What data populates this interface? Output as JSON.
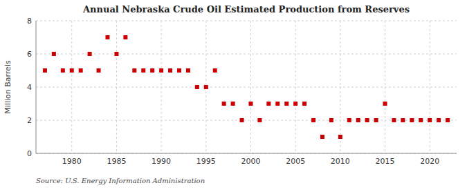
{
  "chart_data": {
    "type": "scatter",
    "title": "Annual Nebraska Crude Oil Estimated Production from Reserves",
    "ylabel": "Million Barrels",
    "source": "Source: U.S. Energy Information Administration",
    "x": [
      1977,
      1978,
      1979,
      1980,
      1981,
      1982,
      1983,
      1984,
      1985,
      1986,
      1987,
      1988,
      1989,
      1990,
      1991,
      1992,
      1993,
      1994,
      1995,
      1996,
      1997,
      1998,
      1999,
      2000,
      2001,
      2002,
      2003,
      2004,
      2005,
      2006,
      2007,
      2008,
      2009,
      2010,
      2011,
      2012,
      2013,
      2014,
      2015,
      2016,
      2017,
      2018,
      2019,
      2020,
      2021,
      2022
    ],
    "values": [
      5,
      6,
      5,
      5,
      5,
      6,
      5,
      7,
      6,
      7,
      5,
      5,
      5,
      5,
      5,
      5,
      5,
      4,
      4,
      5,
      3,
      3,
      2,
      3,
      2,
      3,
      3,
      3,
      3,
      3,
      2,
      1,
      2,
      1,
      2,
      2,
      2,
      2,
      3,
      2,
      2,
      2,
      2,
      2,
      2,
      2
    ],
    "color": "#CC0000",
    "marker": "square",
    "xlim": [
      1976,
      2023
    ],
    "ylim": [
      0,
      8
    ],
    "xticks": [
      1980,
      1985,
      1990,
      1995,
      2000,
      2005,
      2010,
      2015,
      2020
    ],
    "yticks": [
      0,
      2,
      4,
      6,
      8
    ],
    "grid": true
  }
}
